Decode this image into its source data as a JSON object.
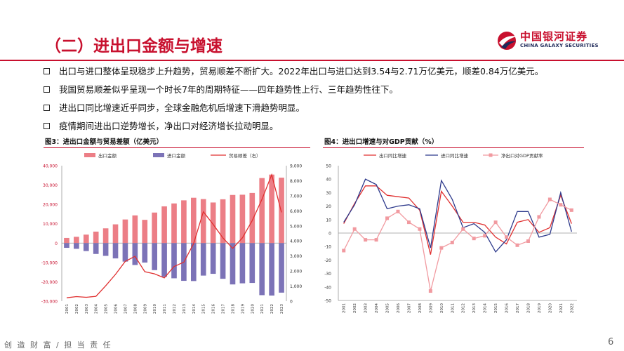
{
  "page": {
    "title": "（二）进出口金额与增速",
    "logo_cn": "中国银河证券",
    "logo_en": "CHINA GALAXY SECURITIES",
    "bullets": [
      "出口与进口整体呈现稳步上升趋势，贸易顺差不断扩大。2022年出口与进口达到3.54与2.71万亿美元，顺差0.84万亿美元。",
      "我国贸易顺差似乎呈现一个时长7年的周期特征——四年趋势性上行、三年趋势性往下。",
      "进出口同比增速近乎同步，全球金融危机后增速下滑趋势明显。",
      "疫情期间进出口逆势增长，净出口对经济增长拉动明显。"
    ],
    "footer": "创 造 财 富 / 担 当 责 任",
    "page_number": "6",
    "colors": {
      "brand_red": "#c8102e",
      "export_bar": "#ec7e86",
      "import_bar": "#7c73b7",
      "balance_line": "#e03030",
      "export_growth": "#e03030",
      "import_growth": "#2e3a8c",
      "net_export": "#f19aa0"
    }
  },
  "chart_data": [
    {
      "type": "bar",
      "title": "图3：进出口金额与贸易差额（亿美元）",
      "categories": [
        "2001",
        "2002",
        "2003",
        "2004",
        "2005",
        "2006",
        "2007",
        "2008",
        "2009",
        "2010",
        "2011",
        "2012",
        "2013",
        "2014",
        "2015",
        "2016",
        "2017",
        "2018",
        "2019",
        "2020",
        "2021",
        "2022",
        "2023"
      ],
      "series": [
        {
          "name": "出口金额",
          "kind": "bar",
          "axis": "left",
          "values": [
            2661,
            3256,
            4382,
            5933,
            7620,
            9689,
            12201,
            14307,
            12016,
            15778,
            18984,
            20487,
            22090,
            23423,
            22735,
            20976,
            22633,
            24867,
            24995,
            25900,
            33600,
            35400,
            33800
          ]
        },
        {
          "name": "进口金额",
          "kind": "bar",
          "axis": "left",
          "values": [
            -2436,
            -2952,
            -4128,
            -5612,
            -6600,
            -7915,
            -9561,
            -11326,
            -10059,
            -13962,
            -17435,
            -18184,
            -19500,
            -19603,
            -16796,
            -15879,
            -18438,
            -21358,
            -20784,
            -20600,
            -26900,
            -27100,
            -25600
          ]
        },
        {
          "name": "贸易顺差（右）",
          "kind": "line",
          "axis": "right",
          "values": [
            225,
            304,
            255,
            321,
            1020,
            1775,
            2640,
            2981,
            1957,
            1815,
            1549,
            2303,
            2590,
            3820,
            5939,
            5097,
            4196,
            3509,
            4211,
            5350,
            6764,
            8400,
            5900
          ]
        }
      ],
      "left_axis": {
        "ticks": [
          "40,000",
          "30,000",
          "20,000",
          "10,000",
          "0",
          "-10,000",
          "-20,000",
          "-30,000"
        ],
        "ylim": [
          -30000,
          40000
        ]
      },
      "right_axis": {
        "ticks": [
          "9,000",
          "8,000",
          "7,000",
          "6,000",
          "5,000",
          "4,000",
          "3,000",
          "2,000",
          "1,000",
          "0"
        ],
        "ylim": [
          0,
          9000
        ]
      }
    },
    {
      "type": "line",
      "title": "图4：进出口增速与对GDP贡献（%）",
      "categories": [
        "2001",
        "2002",
        "2003",
        "2004",
        "2005",
        "2006",
        "2007",
        "2008",
        "2009",
        "2010",
        "2011",
        "2012",
        "2013",
        "2014",
        "2015",
        "2016",
        "2017",
        "2018",
        "2019",
        "2020",
        "2021",
        "2022"
      ],
      "series": [
        {
          "name": "出口同比增速",
          "marker": false,
          "values": [
            7,
            22,
            35,
            35,
            28,
            27,
            26,
            17,
            -16,
            31,
            20,
            8,
            8,
            6,
            -3,
            -8,
            8,
            10,
            0.5,
            4,
            28,
            7
          ]
        },
        {
          "name": "进口同比增速",
          "marker": false,
          "values": [
            8,
            21,
            40,
            36,
            18,
            20,
            21,
            18,
            -11,
            39,
            25,
            4,
            7,
            0.5,
            -14,
            -5,
            16,
            16,
            -3,
            -1,
            30,
            1
          ]
        },
        {
          "name": "净出口对GDP贡献率",
          "marker": true,
          "values": [
            -13,
            3,
            -5,
            -5,
            11,
            16,
            8,
            3,
            -43,
            -11,
            -7,
            3,
            -4,
            -2,
            8,
            -3,
            -9,
            -6,
            12,
            25,
            21,
            17
          ]
        }
      ],
      "yticks": [
        "50",
        "40",
        "30",
        "20",
        "10",
        "0",
        "-10",
        "-20",
        "-30",
        "-40",
        "-50"
      ],
      "ylim": [
        -50,
        50
      ]
    }
  ]
}
